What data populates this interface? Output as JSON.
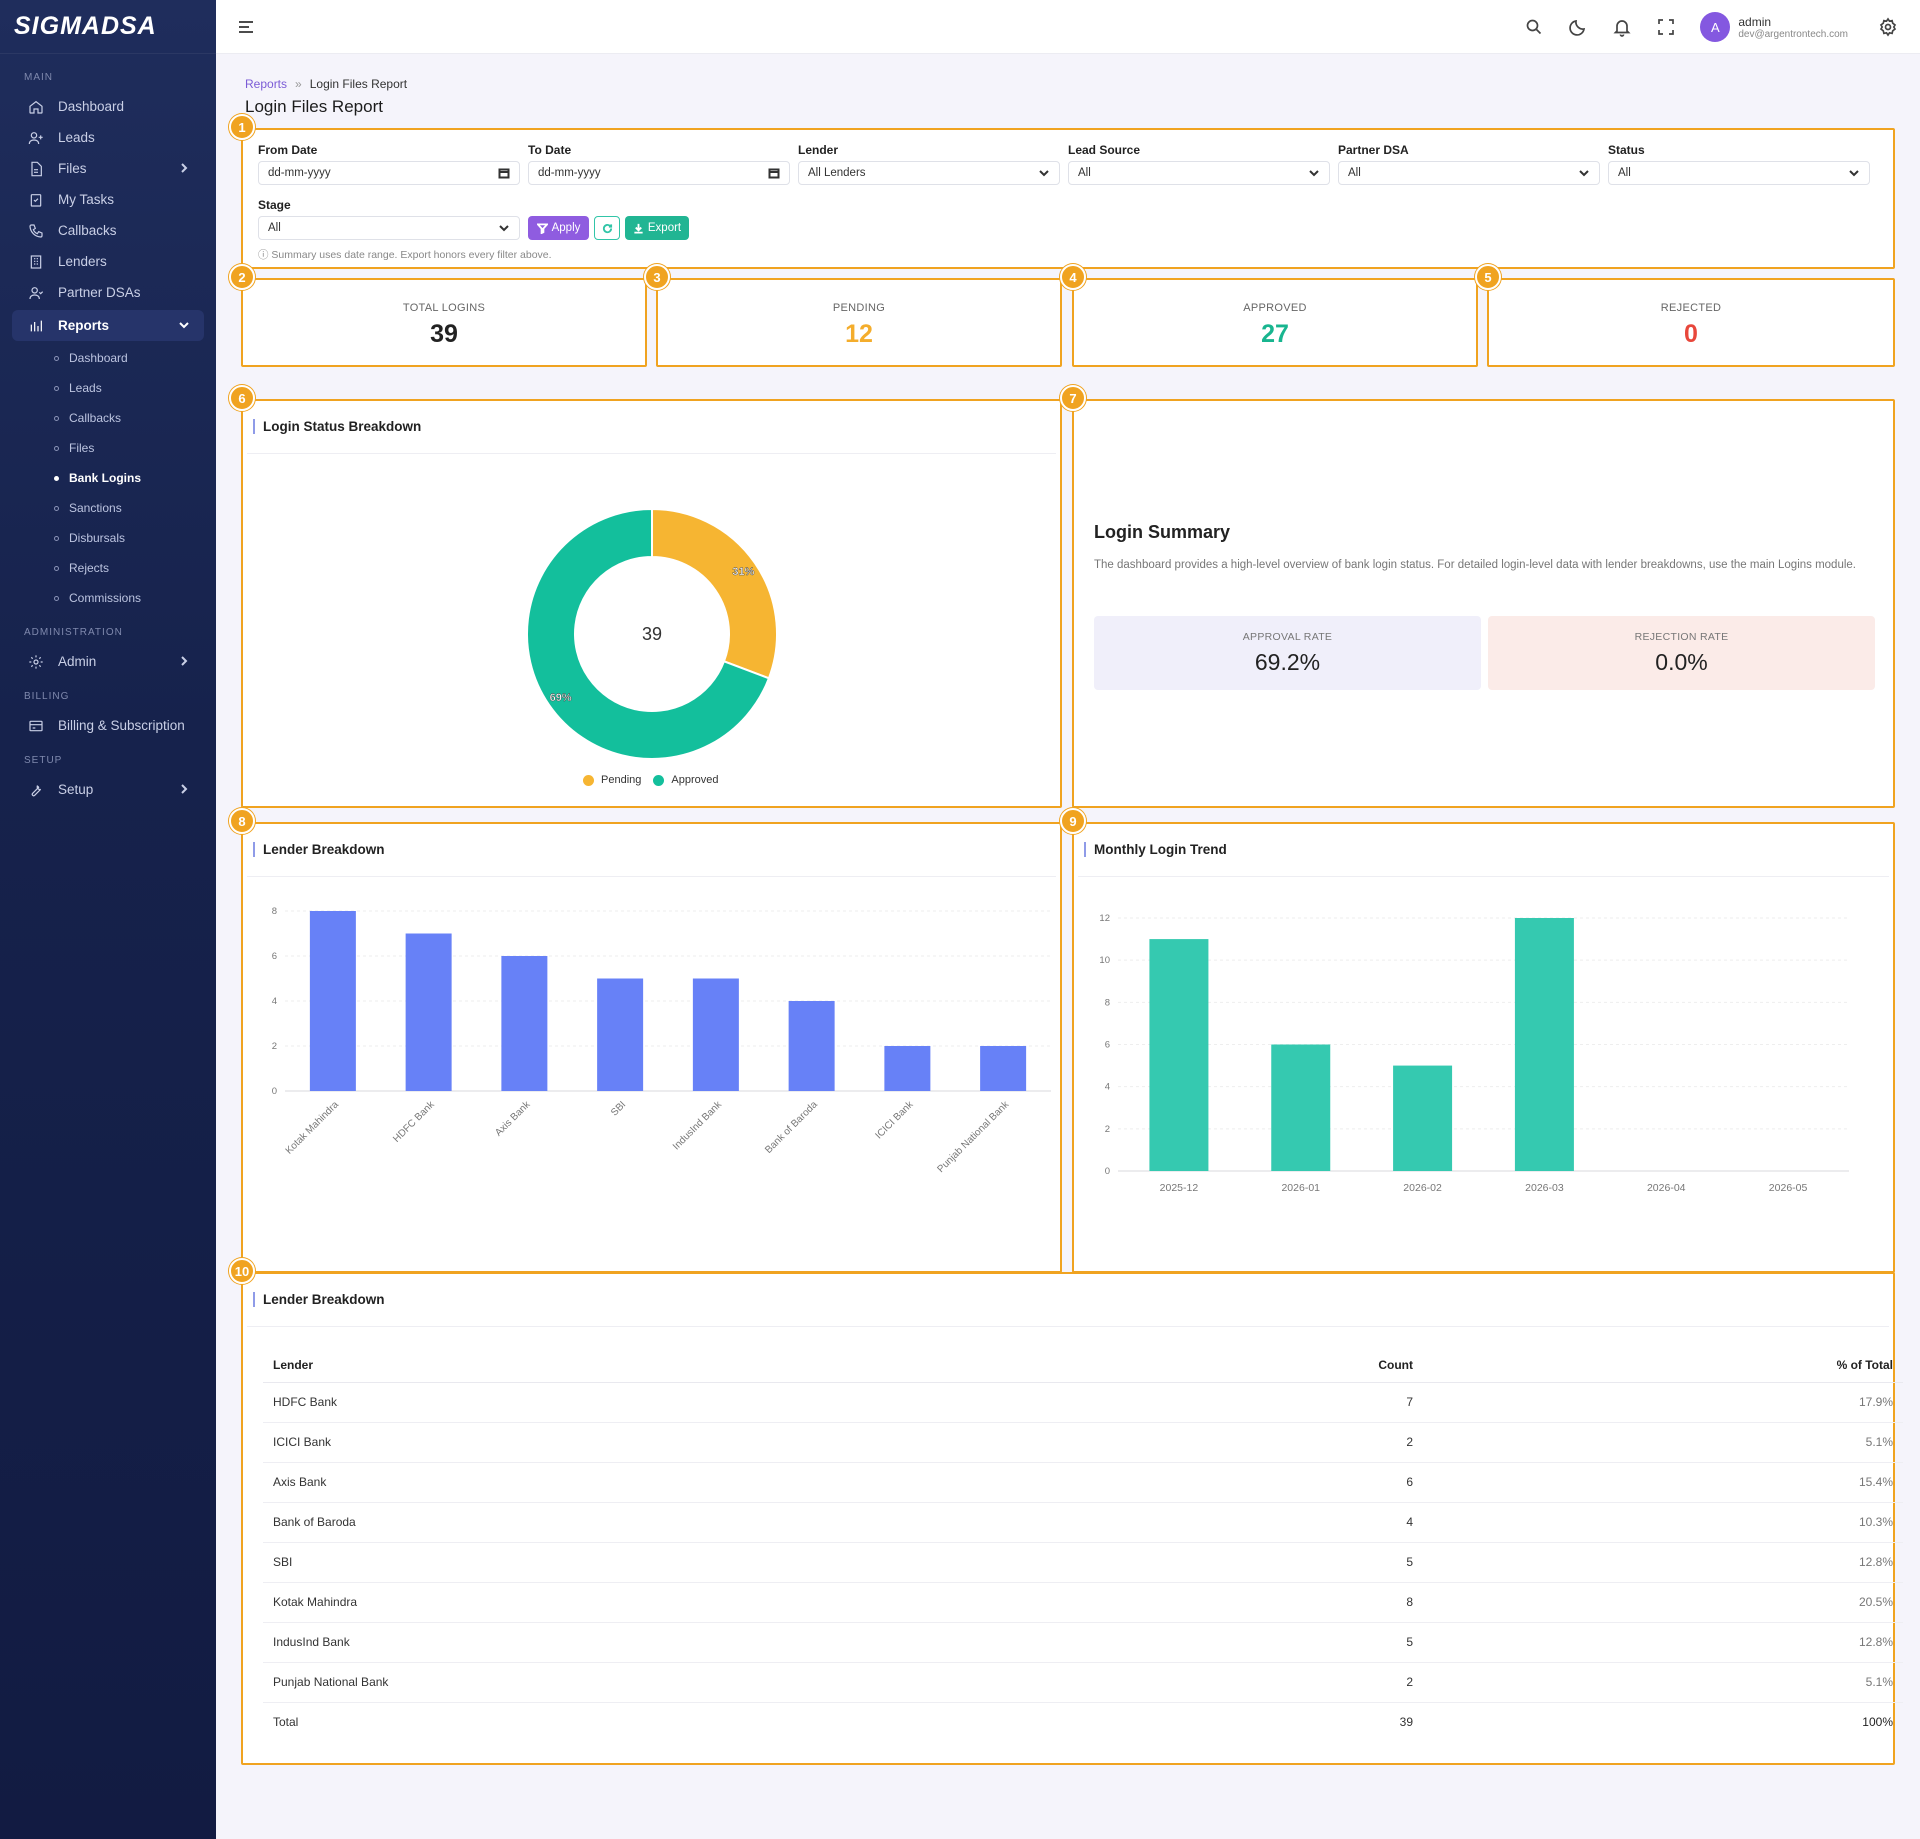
{
  "app": {
    "logo": "SIGMADSA"
  },
  "sidebar": {
    "sections": {
      "main": "MAIN",
      "administration": "ADMINISTRATION",
      "billing": "BILLING",
      "setup": "SETUP"
    },
    "items": [
      {
        "label": "Dashboard",
        "icon": "home-icon"
      },
      {
        "label": "Leads",
        "icon": "user-plus-icon"
      },
      {
        "label": "Files",
        "icon": "file-icon"
      },
      {
        "label": "My Tasks",
        "icon": "clipboard-check-icon"
      },
      {
        "label": "Callbacks",
        "icon": "phone-icon"
      },
      {
        "label": "Lenders",
        "icon": "building-icon"
      },
      {
        "label": "Partner DSAs",
        "icon": "users-icon"
      },
      {
        "label": "Reports",
        "icon": "bar-chart-icon"
      }
    ],
    "reports_sub": [
      "Dashboard",
      "Leads",
      "Callbacks",
      "Files",
      "Bank Logins",
      "Sanctions",
      "Disbursals",
      "Rejects",
      "Commissions"
    ],
    "admin": "Admin",
    "billing": "Billing & Subscription",
    "setup": "Setup"
  },
  "topbar": {
    "avatar_initial": "A",
    "user_name": "admin",
    "user_email": "dev@argentrontech.com"
  },
  "breadcrumb": {
    "parent": "Reports",
    "separator": "»",
    "current": "Login Files Report"
  },
  "page_title": "Login Files Report",
  "filters": {
    "from_date": {
      "label": "From Date",
      "value": "dd-mm-yyyy"
    },
    "to_date": {
      "label": "To Date",
      "value": "dd-mm-yyyy"
    },
    "lender": {
      "label": "Lender",
      "value": "All Lenders"
    },
    "lead_source": {
      "label": "Lead Source",
      "value": "All"
    },
    "partner_dsa": {
      "label": "Partner DSA",
      "value": "All"
    },
    "status": {
      "label": "Status",
      "value": "All"
    },
    "stage": {
      "label": "Stage",
      "value": "All"
    },
    "apply": "Apply",
    "export": "Export",
    "hint": "ⓘ Summary uses date range. Export honors every filter above."
  },
  "badges": [
    "1",
    "2",
    "3",
    "4",
    "5",
    "6",
    "7",
    "8",
    "9",
    "10"
  ],
  "stats": [
    {
      "label": "TOTAL LOGINS",
      "value": "39",
      "color": "#222222"
    },
    {
      "label": "PENDING",
      "value": "12",
      "color": "#f4ad2c"
    },
    {
      "label": "APPROVED",
      "value": "27",
      "color": "#18b58f"
    },
    {
      "label": "REJECTED",
      "value": "0",
      "color": "#e8473b"
    }
  ],
  "status_chart": {
    "title": "Login Status Breakdown"
  },
  "summary": {
    "title": "Login Summary",
    "description": "The dashboard provides a high-level overview of bank login status. For detailed login-level data with lender breakdowns, use the main Logins module.",
    "approval_label": "APPROVAL RATE",
    "approval_value": "69.2%",
    "rejection_label": "REJECTION RATE",
    "rejection_value": "0.0%"
  },
  "lender_chart": {
    "title": "Lender Breakdown"
  },
  "trend_chart": {
    "title": "Monthly Login Trend"
  },
  "table": {
    "title": "Lender Breakdown",
    "headers": [
      "Lender",
      "Count",
      "% of Total"
    ],
    "rows": [
      {
        "lender": "HDFC Bank",
        "count": "7",
        "pct": "17.9%"
      },
      {
        "lender": "ICICI Bank",
        "count": "2",
        "pct": "5.1%"
      },
      {
        "lender": "Axis Bank",
        "count": "6",
        "pct": "15.4%"
      },
      {
        "lender": "Bank of Baroda",
        "count": "4",
        "pct": "10.3%"
      },
      {
        "lender": "SBI",
        "count": "5",
        "pct": "12.8%"
      },
      {
        "lender": "Kotak Mahindra",
        "count": "8",
        "pct": "20.5%"
      },
      {
        "lender": "IndusInd Bank",
        "count": "5",
        "pct": "12.8%"
      },
      {
        "lender": "Punjab National Bank",
        "count": "2",
        "pct": "5.1%"
      }
    ],
    "total": {
      "lender": "Total",
      "count": "39",
      "pct": "100%"
    }
  },
  "chart_data": [
    {
      "type": "pie",
      "title": "Login Status Breakdown",
      "center_label": "39",
      "categories": [
        "Pending",
        "Approved"
      ],
      "values": [
        12,
        27
      ],
      "labels": [
        "31%",
        "69%"
      ],
      "colors": [
        "#f6b532",
        "#13bf9c"
      ],
      "legend": "bottom"
    },
    {
      "type": "bar",
      "title": "Lender Breakdown",
      "categories": [
        "Kotak Mahindra",
        "HDFC Bank",
        "Axis Bank",
        "SBI",
        "IndusInd Bank",
        "Bank of Baroda",
        "ICICI Bank",
        "Punjab National Bank"
      ],
      "values": [
        8,
        7,
        6,
        5,
        5,
        4,
        2,
        2
      ],
      "yticks": [
        0,
        2,
        4,
        6,
        8
      ],
      "ylim": [
        0,
        8
      ],
      "color": "#6781f7",
      "grid": true
    },
    {
      "type": "bar",
      "title": "Monthly Login Trend",
      "categories": [
        "2025-12",
        "2026-01",
        "2026-02",
        "2026-03",
        "2026-04",
        "2026-05"
      ],
      "values": [
        11,
        6,
        5,
        12,
        0,
        0
      ],
      "yticks": [
        0,
        2,
        4,
        6,
        8,
        10,
        12
      ],
      "ylim": [
        0,
        12
      ],
      "color": "#35c9b0",
      "grid": true
    }
  ]
}
